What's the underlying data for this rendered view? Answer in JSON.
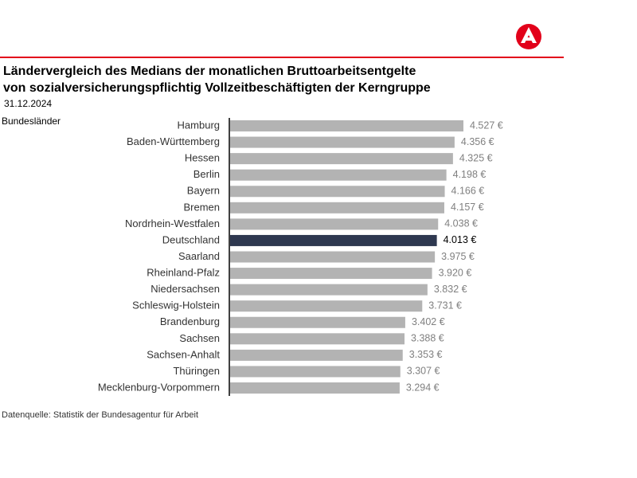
{
  "chart_data": {
    "type": "barh",
    "title": "Ländervergleich des Medians der monatlichen Bruttoarbeitsentgelte",
    "subtitle": "von sozialversicherungspflichtig Vollzeitbeschäftigten der Kerngruppe",
    "date": "31.12.2024",
    "y_label": "Bundesländer",
    "source": "Datenquelle: Statistik der Bundesagentur für Arbeit",
    "categories": [
      "Hamburg",
      "Baden-Württemberg",
      "Hessen",
      "Berlin",
      "Bayern",
      "Bremen",
      "Nordrhein-Westfalen",
      "Deutschland",
      "Saarland",
      "Rheinland-Pfalz",
      "Niedersachsen",
      "Schleswig-Holstein",
      "Brandenburg",
      "Sachsen",
      "Sachsen-Anhalt",
      "Thüringen",
      "Mecklenburg-Vorpommern"
    ],
    "values": [
      4527,
      4356,
      4325,
      4198,
      4166,
      4157,
      4038,
      4013,
      3975,
      3920,
      3832,
      3731,
      3402,
      3388,
      3353,
      3307,
      3294
    ],
    "value_labels": [
      "4.527 €",
      "4.356 €",
      "4.325 €",
      "4.198 €",
      "4.166 €",
      "4.157 €",
      "4.038 €",
      "4.013 €",
      "3.975 €",
      "3.920 €",
      "3.832 €",
      "3.731 €",
      "3.402 €",
      "3.388 €",
      "3.353 €",
      "3.307 €",
      "3.294 €"
    ],
    "colors": [
      "#b3b3b3",
      "#b3b3b3",
      "#b3b3b3",
      "#b3b3b3",
      "#b3b3b3",
      "#b3b3b3",
      "#b3b3b3",
      "#2e3850",
      "#b3b3b3",
      "#b3b3b3",
      "#b3b3b3",
      "#b3b3b3",
      "#b3b3b3",
      "#b3b3b3",
      "#b3b3b3",
      "#b3b3b3",
      "#b3b3b3"
    ],
    "value_label_colors": [
      "#808080",
      "#808080",
      "#808080",
      "#808080",
      "#808080",
      "#808080",
      "#808080",
      "#000000",
      "#808080",
      "#808080",
      "#808080",
      "#808080",
      "#808080",
      "#808080",
      "#808080",
      "#808080",
      "#808080"
    ]
  }
}
